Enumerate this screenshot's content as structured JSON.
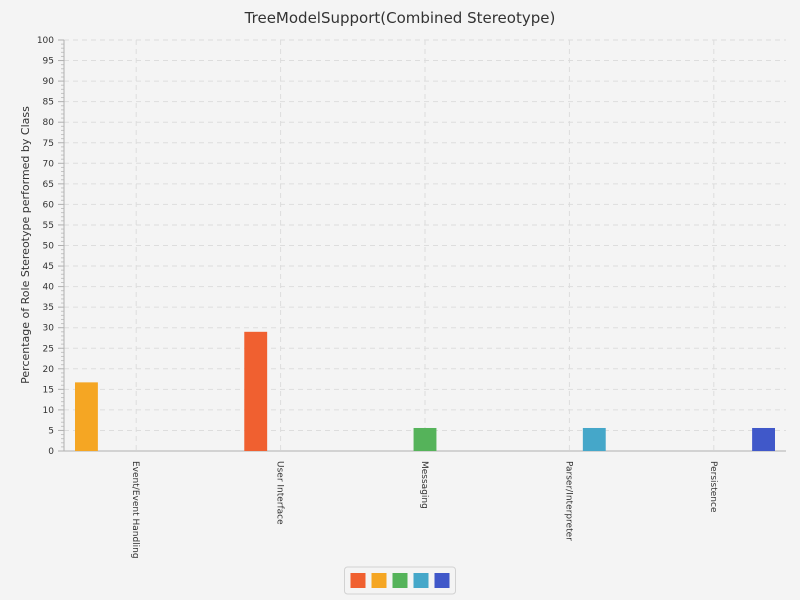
{
  "chart_data": {
    "type": "bar",
    "title": "TreeModelSupport(Combined Stereotype)",
    "xlabel": "",
    "ylabel": "Percentage of Role Stereotype performed by Class",
    "ylim": [
      0,
      100
    ],
    "y_ticks": [
      0,
      5,
      10,
      15,
      20,
      25,
      30,
      35,
      40,
      45,
      50,
      55,
      60,
      65,
      70,
      75,
      80,
      85,
      90,
      95,
      100
    ],
    "grid": true,
    "legend": "bottom-center",
    "categories": [
      "Event/Event Handling",
      "User Interface",
      "Messaging",
      "Parser/Interpreter",
      "Persistence"
    ],
    "series": [
      {
        "color": "#f06030",
        "values": [
          0,
          29,
          0,
          0,
          0
        ]
      },
      {
        "color": "#f5a623",
        "values": [
          16.7,
          0,
          0,
          0,
          0
        ]
      },
      {
        "color": "#55b35a",
        "values": [
          0,
          0,
          5.6,
          0,
          0
        ]
      },
      {
        "color": "#45a7c9",
        "values": [
          0,
          0,
          0,
          5.6,
          0
        ]
      },
      {
        "color": "#4058c9",
        "values": [
          0,
          0,
          0,
          0,
          5.6
        ]
      }
    ]
  }
}
